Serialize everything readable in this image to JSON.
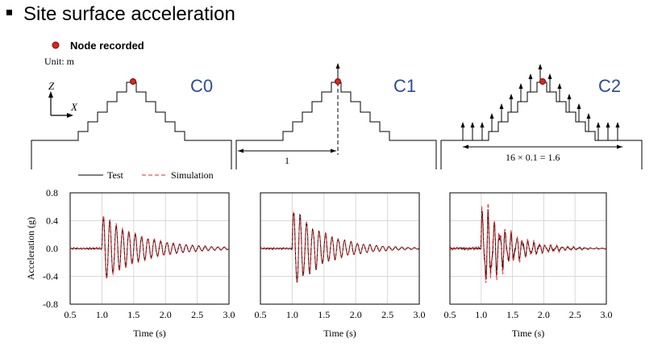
{
  "title": "Site surface acceleration",
  "legend_top": {
    "node_label": "Node recorded",
    "unit": "Unit: m"
  },
  "axes_labels": {
    "z": "Z",
    "x": "X"
  },
  "configs": [
    {
      "label": "C0"
    },
    {
      "label": "C1",
      "dim": "1"
    },
    {
      "label": "C2",
      "dim": "16 × 0.1 = 1.6"
    }
  ],
  "colors": {
    "test": "#000000",
    "simulation": "#e0282b",
    "node": "#d8261f",
    "config_label": "#2e4a9a",
    "grid": "#d8d8d8"
  },
  "chart_data": [
    {
      "type": "line",
      "panel": "C0",
      "legend": [
        "Test",
        "Simulation"
      ],
      "xlabel": "Time (s)",
      "ylabel": "Acceleration (g)",
      "xlim": [
        0.5,
        3.0
      ],
      "ylim": [
        -0.8,
        0.8
      ],
      "xticks": [
        "0.5",
        "1.0",
        "1.5",
        "2.0",
        "2.5",
        "3.0"
      ],
      "yticks": [
        "0.8",
        "0.4",
        "0.0",
        "-0.4",
        "-0.8"
      ],
      "series": [
        {
          "name": "Test",
          "onset": 1.0,
          "peak": 0.48,
          "freq": 10,
          "decay": 1.7,
          "pre": 0.02,
          "chaos": 0.05,
          "seed": 11
        },
        {
          "name": "Simulation",
          "onset": 1.0,
          "peak": 0.5,
          "freq": 10,
          "decay": 1.6,
          "pre": 0.02,
          "chaos": 0.05,
          "seed": 17
        }
      ]
    },
    {
      "type": "line",
      "panel": "C1",
      "legend": [
        "Test",
        "Simulation"
      ],
      "xlabel": "Time (s)",
      "ylabel": "",
      "xlim": [
        0.5,
        3.0
      ],
      "ylim": [
        -0.8,
        0.8
      ],
      "xticks": [
        "0.5",
        "1.0",
        "1.5",
        "2.0",
        "2.5",
        "3.0"
      ],
      "yticks": [],
      "series": [
        {
          "name": "Test",
          "onset": 1.0,
          "peak": 0.58,
          "freq": 10,
          "decay": 2.0,
          "pre": 0.02,
          "chaos": 0.15,
          "seed": 23
        },
        {
          "name": "Simulation",
          "onset": 1.0,
          "peak": 0.55,
          "freq": 10,
          "decay": 1.9,
          "pre": 0.02,
          "chaos": 0.15,
          "seed": 31
        }
      ]
    },
    {
      "type": "line",
      "panel": "C2",
      "legend": [
        "Test",
        "Simulation"
      ],
      "xlabel": "Time (s)",
      "ylabel": "",
      "xlim": [
        0.5,
        3.0
      ],
      "ylim": [
        -0.8,
        0.8
      ],
      "xticks": [
        "0.5",
        "1.0",
        "1.5",
        "2.0",
        "2.5",
        "3.0"
      ],
      "yticks": [],
      "series": [
        {
          "name": "Test",
          "onset": 1.0,
          "peak": 0.5,
          "freq": 11,
          "decay": 2.4,
          "pre": 0.03,
          "chaos": 0.55,
          "seed": 41
        },
        {
          "name": "Simulation",
          "onset": 1.0,
          "peak": 0.55,
          "freq": 11,
          "decay": 2.2,
          "pre": 0.03,
          "chaos": 0.6,
          "seed": 53
        }
      ]
    }
  ]
}
